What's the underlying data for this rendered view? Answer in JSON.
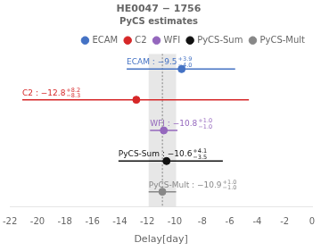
{
  "chart_data": {
    "type": "errorbar",
    "title": "HE0047 − 1756",
    "subtitle": "PyCS estimates",
    "xlabel": "Delay[day]",
    "xlim": [
      -22,
      0
    ],
    "xticks": [
      -22,
      -20,
      -18,
      -16,
      -14,
      -12,
      -10,
      -8,
      -6,
      -4,
      -2,
      0
    ],
    "grid": false,
    "legend": "upper right",
    "band": {
      "center": -10.9,
      "half_width": 1.0
    },
    "vline": -10.9,
    "series": [
      {
        "name": "ECAM",
        "color": "#4472c4",
        "values": [
          -9.5
        ],
        "err_plus": [
          3.9
        ],
        "err_minus": [
          4.0
        ],
        "annotation": {
          "text": "ECAM : −9.5",
          "sup": "+3.9",
          "sub": "−4.0"
        }
      },
      {
        "name": "C2",
        "color": "#d62728",
        "values": [
          -12.8
        ],
        "err_plus": [
          8.2
        ],
        "err_minus": [
          8.3
        ],
        "annotation": {
          "text": "C2 : −12.8",
          "sup": "+8.2",
          "sub": "−8.3"
        }
      },
      {
        "name": "WFI",
        "color": "#9467bd",
        "values": [
          -10.8
        ],
        "err_plus": [
          1.0
        ],
        "err_minus": [
          1.0
        ],
        "annotation": {
          "text": "WFI : −10.8",
          "sup": "+1.0",
          "sub": "−1.0"
        }
      },
      {
        "name": "PyCS-Sum",
        "color": "#111111",
        "values": [
          -10.6
        ],
        "err_plus": [
          4.1
        ],
        "err_minus": [
          3.5
        ],
        "annotation": {
          "text": "PyCS-Sum : −10.6",
          "sup": "+4.1",
          "sub": "−3.5"
        }
      },
      {
        "name": "PyCS-Mult",
        "color": "#888888",
        "values": [
          -10.9
        ],
        "err_plus": [
          1.0
        ],
        "err_minus": [
          1.0
        ],
        "annotation": {
          "text": "PyCS-Mult : −10.9",
          "sup": "+1.0",
          "sub": "−1.0"
        }
      }
    ]
  }
}
